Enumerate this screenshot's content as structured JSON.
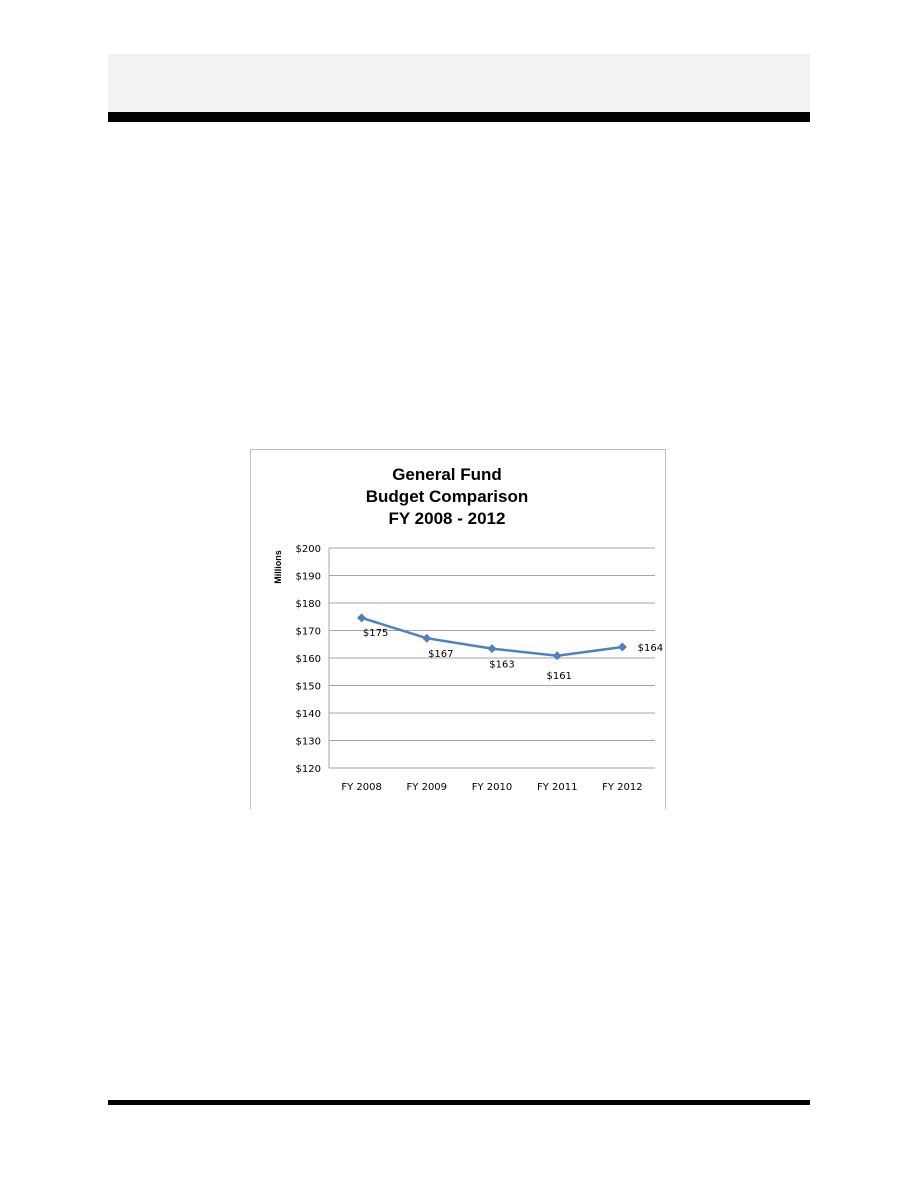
{
  "chart_data": {
    "type": "line",
    "title_lines": [
      "General Fund",
      "Budget Comparison",
      "FY 2008 - 2012"
    ],
    "ylabel": "Millions",
    "xlabel": "",
    "categories": [
      "FY 2008",
      "FY 2009",
      "FY 2010",
      "FY 2011",
      "FY 2012"
    ],
    "series": [
      {
        "values": [
          174.6,
          167.2,
          163.4,
          160.8,
          164.0
        ]
      }
    ],
    "data_labels": [
      "$175",
      "$167",
      "$163",
      "$161",
      "$164"
    ],
    "ylim": [
      120,
      200
    ],
    "yticks": [
      120,
      130,
      140,
      150,
      160,
      170,
      180,
      190,
      200
    ],
    "ytick_labels": [
      "$120",
      "$130",
      "$140",
      "$150",
      "$160",
      "$170",
      "$180",
      "$190",
      "$200"
    ],
    "grid": true,
    "legend": "none",
    "line_color": "#4f81bd",
    "grid_color": "#a6a6a6"
  }
}
